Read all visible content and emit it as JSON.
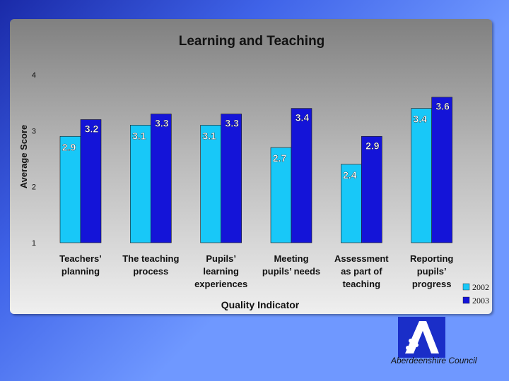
{
  "chart_data": {
    "type": "bar",
    "title": "Learning and Teaching",
    "xlabel": "Quality Indicator",
    "ylabel": "Average Score",
    "ylim": [
      1,
      4
    ],
    "yticks": [
      "1",
      "2",
      "3",
      "4"
    ],
    "categories": [
      [
        "Teachers’",
        "planning"
      ],
      [
        "The teaching",
        "process"
      ],
      [
        "Pupils’",
        "learning",
        "experiences"
      ],
      [
        "Meeting",
        "pupils’ needs"
      ],
      [
        "Assessment",
        "as part of",
        "teaching"
      ],
      [
        "Reporting",
        "pupils’",
        "progress"
      ]
    ],
    "series": [
      {
        "name": "2002",
        "color": "#18c8f8",
        "values": [
          2.9,
          3.1,
          3.1,
          2.7,
          2.4,
          3.4
        ]
      },
      {
        "name": "2003",
        "color": "#1414d8",
        "values": [
          3.2,
          3.3,
          3.3,
          3.4,
          2.9,
          3.6
        ]
      }
    ],
    "legend_position": "bottom-right",
    "grid": false
  },
  "footer": {
    "organisation": "Aberdeenshire Council",
    "logo_icon": "aberdeenshire-logo-icon"
  }
}
